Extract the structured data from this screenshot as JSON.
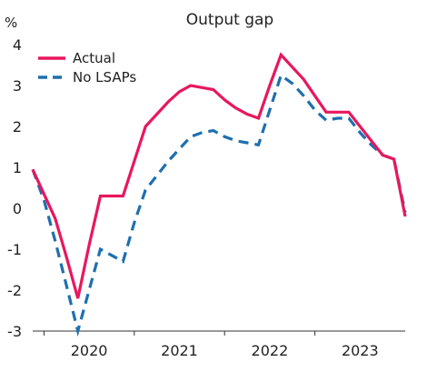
{
  "chart_data": {
    "type": "line",
    "title": "Output gap",
    "ylabel": "%",
    "xlabel": "",
    "ylim": [
      -3,
      4
    ],
    "y_ticks": [
      4,
      3,
      2,
      1,
      0,
      -1,
      -2,
      -3
    ],
    "x_range": [
      2019.75,
      2023.875
    ],
    "x_tick_labels": [
      {
        "label": "2020",
        "at": 2020.375
      },
      {
        "label": "2021",
        "at": 2021.375
      },
      {
        "label": "2022",
        "at": 2022.375
      },
      {
        "label": "2023",
        "at": 2023.375
      }
    ],
    "x": [
      2019.75,
      2019.875,
      2020.0,
      2020.125,
      2020.25,
      2020.375,
      2020.5,
      2020.625,
      2020.75,
      2020.875,
      2021.0,
      2021.125,
      2021.25,
      2021.375,
      2021.5,
      2021.625,
      2021.75,
      2021.875,
      2022.0,
      2022.125,
      2022.25,
      2022.375,
      2022.5,
      2022.625,
      2022.75,
      2022.875,
      2023.0,
      2023.125,
      2023.25,
      2023.375,
      2023.5,
      2023.625,
      2023.75,
      2023.875
    ],
    "series": [
      {
        "name": "Actual",
        "color": "#e8175d",
        "dash": "solid",
        "values": [
          0.95,
          0.35,
          -0.25,
          -1.2,
          -2.2,
          -0.9,
          0.3,
          0.3,
          0.3,
          1.15,
          2.0,
          2.3,
          2.6,
          2.85,
          3.0,
          2.95,
          2.9,
          2.65,
          2.45,
          2.3,
          2.2,
          3.0,
          3.75,
          3.45,
          3.15,
          2.75,
          2.35,
          2.35,
          2.35,
          2.0,
          1.65,
          1.3,
          1.2,
          -0.2
        ]
      },
      {
        "name": "No LSAPs",
        "color": "#1f6fb0",
        "dash": "dashed",
        "values": [
          0.95,
          0.2,
          -0.8,
          -1.9,
          -3.0,
          -2.0,
          -1.0,
          -1.15,
          -1.3,
          -0.35,
          0.45,
          0.8,
          1.15,
          1.45,
          1.75,
          1.85,
          1.9,
          1.75,
          1.65,
          1.6,
          1.55,
          2.4,
          3.25,
          3.05,
          2.75,
          2.4,
          2.15,
          2.2,
          2.2,
          1.85,
          1.55,
          1.3,
          1.2,
          -0.1
        ]
      }
    ],
    "legend_position": "top-left",
    "grid": false
  }
}
